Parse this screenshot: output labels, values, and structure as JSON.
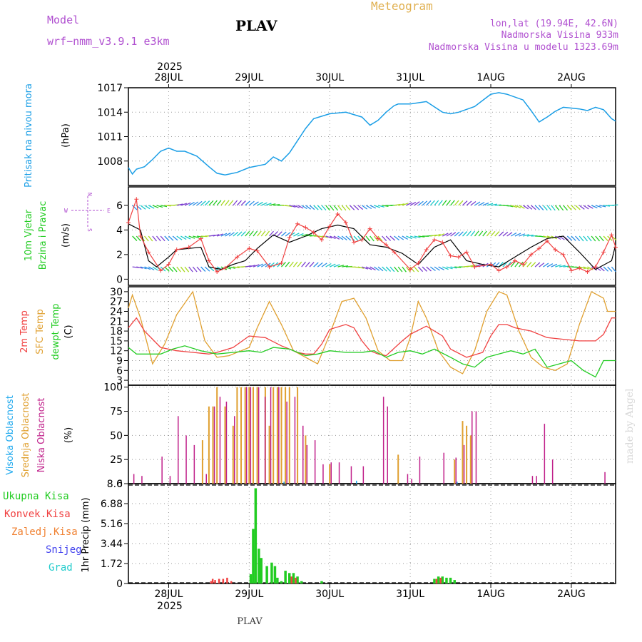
{
  "header": {
    "model_label": "Model",
    "model_name": "wrf−nmm_v3.9.1  e3km",
    "station": "PLAV",
    "title": "Meteogram",
    "lonlat": "lon,lat (19.94E, 42.6N)",
    "elevation": "Nadmorska Visina 933m",
    "model_elevation": "Nadmorska Visina u modelu 1323.69m",
    "year_top": "2025",
    "year_bottom": "2025",
    "footer_station": "PLAV",
    "credit": "made by Angel"
  },
  "x_axis": {
    "day_labels": [
      "28JUL",
      "29JUL",
      "30JUL",
      "31JUL",
      "1AUG",
      "2AUG"
    ],
    "day_positions": [
      0.5,
      1.5,
      2.5,
      3.5,
      4.5,
      5.5
    ],
    "range": [
      0,
      6.05
    ]
  },
  "colors": {
    "pressure": "#1a9ee6",
    "temp2m": "#f04040",
    "sfc": "#e0a030",
    "dew": "#22cc22",
    "high": "#22aaee",
    "mid": "#e0a030",
    "low": "#c0208a",
    "wind_obs": "#000000",
    "rain": "#22cc22",
    "conv": "#f04040",
    "frz": "#f08030",
    "snow": "#4444ee",
    "grad": "#22cccc"
  },
  "panels": {
    "pressure": {
      "label": "Pritisak na nivou mora",
      "unit": "(hPa)",
      "ticks": [
        "1008",
        "1011",
        "1014",
        "1017"
      ],
      "ylim": [
        1005,
        1017
      ]
    },
    "wind": {
      "label1": "10m Vjetar",
      "label2": "Brzina i Pravac",
      "unit": "(m/s)",
      "ticks": [
        "0",
        "2",
        "4",
        "6"
      ],
      "ylim": [
        -0.5,
        7.5
      ],
      "compass": {
        "n": "N",
        "s": "S",
        "e": "E",
        "w": "W"
      }
    },
    "temp": {
      "label1": "2m Temp",
      "label2": "SFC Temp",
      "label3": "dewpt Temp",
      "unit": "(C)",
      "ticks": [
        "3",
        "6",
        "9",
        "12",
        "15",
        "18",
        "21",
        "24",
        "27",
        "30"
      ],
      "ylim": [
        1.5,
        31.5
      ]
    },
    "cloud": {
      "label1": "Visoka Oblacnost",
      "label2": "Srednja Oblacnost",
      "label3": "Niska Oblacnost",
      "unit": "(%)",
      "ticks": [
        "0",
        "25",
        "50",
        "75",
        "100"
      ],
      "ylim": [
        0,
        102
      ]
    },
    "precip": {
      "labels": [
        "Ukupna Kisa",
        "Konvek.Kisa",
        "Zaledj.Kisa",
        "Snijeg",
        "Grad"
      ],
      "unit": "1hr Precip (mm)",
      "ticks": [
        "0",
        "1.72",
        "3.44",
        "5.16",
        "6.88",
        "8.6"
      ],
      "ylim": [
        0,
        8.6
      ]
    }
  },
  "chart_data": {
    "type": "meteogram",
    "pressure_hPa": {
      "t": [
        0,
        0.05,
        0.1,
        0.2,
        0.3,
        0.4,
        0.5,
        0.6,
        0.7,
        0.85,
        1.0,
        1.1,
        1.2,
        1.35,
        1.5,
        1.7,
        1.8,
        1.9,
        2.0,
        2.1,
        2.2,
        2.3,
        2.5,
        2.7,
        2.9,
        3.0,
        3.1,
        3.2,
        3.3,
        3.35,
        3.5,
        3.7,
        3.9,
        4.0,
        4.1,
        4.3,
        4.5,
        4.6,
        4.7,
        4.9,
        5.0,
        5.1,
        5.2,
        5.3,
        5.4,
        5.5,
        5.6,
        5.7,
        5.8,
        5.9,
        6.0,
        6.05
      ],
      "v": [
        1007.2,
        1006.4,
        1007.0,
        1007.3,
        1008.2,
        1009.2,
        1009.6,
        1009.2,
        1009.2,
        1008.6,
        1007.3,
        1006.5,
        1006.3,
        1006.6,
        1007.2,
        1007.6,
        1008.5,
        1008.0,
        1009.0,
        1010.5,
        1012.0,
        1013.2,
        1013.8,
        1014.0,
        1013.4,
        1012.4,
        1013.0,
        1014.0,
        1014.8,
        1015.0,
        1015.0,
        1015.3,
        1014.0,
        1013.8,
        1014.0,
        1014.7,
        1016.2,
        1016.4,
        1016.2,
        1015.5,
        1014.2,
        1012.8,
        1013.4,
        1014.1,
        1014.6,
        1014.5,
        1014.4,
        1014.2,
        1014.6,
        1014.3,
        1013.2,
        1012.9
      ]
    },
    "wind_speed_ms": {
      "t": [
        0,
        0.1,
        0.15,
        0.25,
        0.4,
        0.5,
        0.6,
        0.75,
        0.9,
        1.0,
        1.1,
        1.2,
        1.35,
        1.5,
        1.6,
        1.75,
        1.9,
        2.0,
        2.1,
        2.2,
        2.3,
        2.4,
        2.5,
        2.6,
        2.7,
        2.8,
        2.9,
        3.0,
        3.1,
        3.2,
        3.3,
        3.5,
        3.6,
        3.7,
        3.8,
        3.9,
        4.0,
        4.1,
        4.2,
        4.3,
        4.5,
        4.6,
        4.7,
        4.8,
        4.9,
        5.0,
        5.1,
        5.2,
        5.3,
        5.4,
        5.5,
        5.6,
        5.7,
        5.8,
        5.9,
        6.0,
        6.05
      ],
      "v": [
        4.6,
        6.5,
        3.5,
        2.2,
        0.7,
        1.2,
        2.4,
        2.6,
        3.3,
        1.5,
        0.6,
        0.9,
        1.8,
        2.5,
        2.3,
        1.0,
        1.3,
        3.4,
        4.5,
        4.2,
        3.8,
        3.2,
        4.3,
        5.3,
        4.6,
        3.0,
        3.2,
        4.1,
        3.3,
        2.8,
        2.2,
        0.8,
        1.3,
        2.4,
        3.2,
        3.0,
        1.9,
        1.8,
        2.2,
        1.0,
        1.2,
        0.7,
        1.0,
        1.5,
        1.2,
        2.0,
        2.5,
        3.1,
        2.4,
        2.0,
        0.7,
        0.9,
        0.6,
        1.0,
        2.2,
        3.6,
        2.6
      ]
    },
    "wind_obs_ms": {
      "t": [
        0,
        0.15,
        0.25,
        0.35,
        0.5,
        0.6,
        0.75,
        0.9,
        1.0,
        1.15,
        1.3,
        1.45,
        1.6,
        1.8,
        2.0,
        2.2,
        2.4,
        2.6,
        2.8,
        3.0,
        3.2,
        3.4,
        3.6,
        3.8,
        4.0,
        4.2,
        4.4,
        4.6,
        4.8,
        5.0,
        5.2,
        5.4,
        5.6,
        5.8,
        6.0,
        6.05
      ],
      "v": [
        4.5,
        4.0,
        1.5,
        1.0,
        1.8,
        2.4,
        2.5,
        2.6,
        1.0,
        0.8,
        1.2,
        1.5,
        2.5,
        3.6,
        3.0,
        3.5,
        4.1,
        4.4,
        4.1,
        2.8,
        2.6,
        2.1,
        1.2,
        2.6,
        3.2,
        1.5,
        1.2,
        1.0,
        1.8,
        2.6,
        3.3,
        3.5,
        2.2,
        0.8,
        1.5,
        2.8
      ]
    },
    "temp_2m_C": {
      "t": [
        0,
        0.1,
        0.2,
        0.4,
        0.6,
        0.8,
        1.0,
        1.1,
        1.3,
        1.5,
        1.7,
        1.9,
        2.0,
        2.1,
        2.2,
        2.3,
        2.4,
        2.5,
        2.7,
        2.8,
        2.9,
        3.0,
        3.1,
        3.2,
        3.4,
        3.5,
        3.7,
        3.9,
        4.0,
        4.2,
        4.4,
        4.5,
        4.6,
        4.7,
        4.8,
        5.0,
        5.2,
        5.4,
        5.6,
        5.8,
        5.9,
        6.0,
        6.05
      ],
      "v": [
        19,
        22,
        18,
        13,
        12,
        11.5,
        11,
        11.5,
        13,
        16.5,
        16,
        13.5,
        12.5,
        11.5,
        11,
        11,
        14,
        18.5,
        20,
        19,
        15,
        12,
        11,
        10.5,
        15,
        17,
        19.5,
        16.5,
        12.5,
        10,
        11.5,
        16.5,
        20,
        20,
        19,
        18,
        16,
        15.5,
        15,
        15,
        17,
        22,
        22
      ]
    },
    "temp_sfc_C": {
      "t": [
        0,
        0.05,
        0.15,
        0.3,
        0.45,
        0.6,
        0.8,
        0.95,
        1.1,
        1.25,
        1.4,
        1.5,
        1.6,
        1.75,
        1.9,
        2.05,
        2.2,
        2.35,
        2.5,
        2.65,
        2.8,
        2.95,
        3.1,
        3.25,
        3.4,
        3.5,
        3.6,
        3.7,
        3.85,
        4.0,
        4.15,
        4.3,
        4.45,
        4.6,
        4.7,
        4.85,
        5.0,
        5.15,
        5.3,
        5.45,
        5.6,
        5.75,
        5.9,
        5.95,
        6.05
      ],
      "v": [
        25,
        29,
        22,
        8,
        14,
        23,
        30,
        15,
        10,
        10.5,
        12,
        13,
        19,
        27,
        20,
        12,
        10,
        8,
        17,
        27,
        28,
        22,
        12,
        9,
        9,
        16,
        27,
        22,
        12,
        7,
        5,
        12,
        24,
        30,
        29,
        18,
        10,
        7,
        6,
        8,
        20,
        30,
        28,
        24,
        24
      ]
    },
    "dewpoint_C": {
      "t": [
        0,
        0.1,
        0.25,
        0.4,
        0.55,
        0.7,
        0.9,
        1.1,
        1.3,
        1.5,
        1.65,
        1.8,
        2.0,
        2.2,
        2.35,
        2.5,
        2.7,
        2.9,
        3.05,
        3.2,
        3.35,
        3.5,
        3.65,
        3.8,
        4.0,
        4.15,
        4.3,
        4.45,
        4.6,
        4.75,
        4.9,
        5.05,
        5.2,
        5.35,
        5.5,
        5.65,
        5.8,
        5.9,
        6.05
      ],
      "v": [
        13,
        11,
        11,
        11,
        12.5,
        13.5,
        12,
        11,
        11.5,
        12,
        11.5,
        13,
        12.5,
        10.5,
        11,
        12,
        11.5,
        11.5,
        12,
        10,
        11.5,
        12,
        11,
        12.5,
        10,
        8,
        7,
        10,
        11,
        12,
        11,
        12.5,
        7,
        8,
        9,
        6,
        4,
        9,
        9
      ]
    },
    "cloud_high_pct": {
      "t": [
        1.95,
        2.85,
        4.1
      ],
      "v": [
        2,
        3,
        2
      ]
    },
    "cloud_mid_pct": {
      "t": [
        0.92,
        1.0,
        1.05,
        1.1,
        1.2,
        1.3,
        1.35,
        1.4,
        1.45,
        1.5,
        1.55,
        1.6,
        1.7,
        1.75,
        1.8,
        1.85,
        1.9,
        1.95,
        2.0,
        2.1,
        2.2,
        2.5,
        3.35,
        4.05,
        4.15,
        4.2,
        4.25
      ],
      "v": [
        45,
        80,
        80,
        100,
        80,
        60,
        100,
        100,
        100,
        100,
        100,
        100,
        100,
        60,
        100,
        100,
        100,
        100,
        100,
        100,
        50,
        20,
        30,
        25,
        65,
        60,
        50
      ]
    },
    "cloud_low_pct": {
      "t": [
        0.05,
        0.15,
        0.4,
        0.5,
        0.6,
        0.7,
        0.8,
        0.95,
        1.05,
        1.12,
        1.2,
        1.3,
        1.45,
        1.5,
        1.6,
        1.68,
        1.75,
        1.85,
        1.95,
        2.05,
        2.15,
        2.2,
        2.3,
        2.4,
        2.5,
        2.6,
        2.75,
        2.9,
        3.15,
        3.2,
        3.45,
        3.5,
        3.6,
        3.9,
        4.05,
        4.15,
        4.25,
        4.3,
        5.0,
        5.05,
        5.15,
        5.25,
        5.9
      ],
      "v": [
        10,
        8,
        28,
        8,
        70,
        50,
        40,
        10,
        80,
        90,
        85,
        70,
        100,
        100,
        100,
        90,
        100,
        100,
        85,
        90,
        60,
        40,
        45,
        20,
        22,
        22,
        18,
        18,
        90,
        80,
        10,
        5,
        28,
        32,
        27,
        40,
        75,
        75,
        8,
        8,
        62,
        25,
        12
      ]
    },
    "precip_total_mm": {
      "t": [
        1.52,
        1.55,
        1.58,
        1.62,
        1.65,
        1.72,
        1.78,
        1.82,
        1.85,
        1.9,
        1.95,
        2.0,
        2.05,
        2.1,
        2.15,
        2.4,
        3.8,
        3.85,
        3.9,
        3.95,
        4.0,
        4.05
      ],
      "v": [
        0.8,
        4.7,
        8.2,
        3.0,
        2.2,
        1.5,
        1.8,
        1.5,
        0.5,
        0.2,
        1.1,
        0.9,
        0.9,
        0.6,
        0.2,
        0.2,
        0.4,
        0.6,
        0.6,
        0.5,
        0.5,
        0.3
      ]
    },
    "precip_conv_mm": {
      "t": [
        1.0,
        1.02,
        1.05,
        1.1,
        1.15,
        1.2,
        1.25,
        2.0,
        2.05,
        3.8,
        3.85
      ],
      "v": [
        0.2,
        0.4,
        0.3,
        0.4,
        0.4,
        0.5,
        0.2,
        0.6,
        0.5,
        0.4,
        0.5
      ]
    }
  }
}
